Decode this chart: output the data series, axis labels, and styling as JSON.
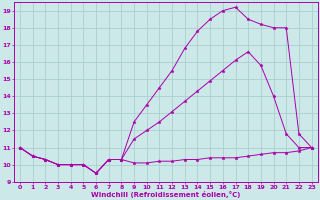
{
  "background_color": "#cce8e8",
  "grid_color": "#aacece",
  "line_color": "#aa00aa",
  "marker": "*",
  "marker_size": 2.5,
  "linewidth": 0.7,
  "line1_x": [
    0,
    1,
    2,
    3,
    4,
    5,
    6,
    7,
    8,
    9,
    10,
    11,
    12,
    13,
    14,
    15,
    16,
    17,
    18,
    19,
    20,
    21,
    22,
    23
  ],
  "line1_y": [
    11.0,
    10.5,
    10.3,
    10.0,
    10.0,
    10.0,
    9.5,
    10.3,
    10.3,
    10.1,
    10.1,
    10.2,
    10.2,
    10.3,
    10.3,
    10.4,
    10.4,
    10.4,
    10.5,
    10.6,
    10.7,
    10.7,
    10.8,
    11.0
  ],
  "line2_x": [
    0,
    1,
    2,
    3,
    4,
    5,
    6,
    7,
    8,
    9,
    10,
    11,
    12,
    13,
    14,
    15,
    16,
    17,
    18,
    19,
    20,
    21,
    22,
    23
  ],
  "line2_y": [
    11.0,
    10.5,
    10.3,
    10.0,
    10.0,
    10.0,
    9.5,
    10.3,
    10.3,
    11.5,
    12.0,
    12.5,
    13.1,
    13.7,
    14.3,
    14.9,
    15.5,
    16.1,
    16.6,
    15.8,
    14.0,
    11.8,
    11.0,
    11.0
  ],
  "line3_x": [
    0,
    1,
    2,
    3,
    4,
    5,
    6,
    7,
    8,
    9,
    10,
    11,
    12,
    13,
    14,
    15,
    16,
    17,
    18,
    19,
    20,
    21,
    22,
    23
  ],
  "line3_y": [
    11.0,
    10.5,
    10.3,
    10.0,
    10.0,
    10.0,
    9.5,
    10.3,
    10.3,
    12.5,
    13.5,
    14.5,
    15.5,
    16.8,
    17.8,
    18.5,
    19.0,
    19.2,
    18.5,
    18.2,
    18.0,
    18.0,
    11.8,
    11.0
  ],
  "xlim": [
    -0.5,
    23.5
  ],
  "ylim": [
    9,
    19.5
  ],
  "xticks": [
    0,
    1,
    2,
    3,
    4,
    5,
    6,
    7,
    8,
    9,
    10,
    11,
    12,
    13,
    14,
    15,
    16,
    17,
    18,
    19,
    20,
    21,
    22,
    23
  ],
  "yticks": [
    9,
    10,
    11,
    12,
    13,
    14,
    15,
    16,
    17,
    18,
    19
  ],
  "xlabel": "Windchill (Refroidissement éolien,°C)"
}
